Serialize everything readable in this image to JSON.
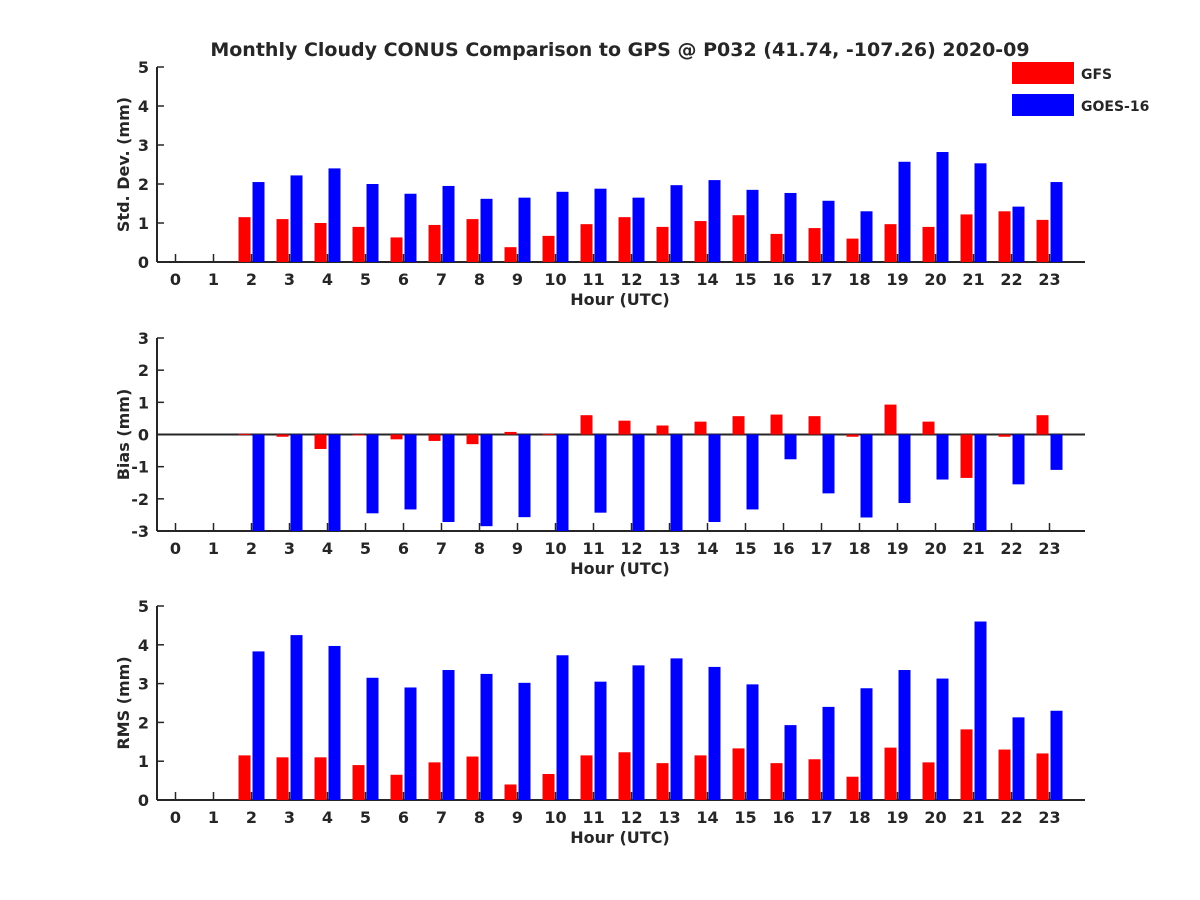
{
  "title": "Monthly Cloudy CONUS Comparison to GPS @ P032 (41.74, -107.26) 2020-09",
  "colors": {
    "gfs": "#ff0000",
    "goes": "#0000ff",
    "axis": "#262626",
    "background": "#ffffff"
  },
  "legend": {
    "placement": "top-right",
    "items": [
      {
        "label": "GFS",
        "color": "#ff0000"
      },
      {
        "label": "GOES-16",
        "color": "#0000ff"
      }
    ]
  },
  "chart_data": [
    {
      "type": "bar",
      "ylabel": "Std. Dev. (mm)",
      "xlabel": "Hour (UTC)",
      "categories": [
        "0",
        "1",
        "2",
        "3",
        "4",
        "5",
        "6",
        "7",
        "8",
        "9",
        "10",
        "11",
        "12",
        "13",
        "14",
        "15",
        "16",
        "17",
        "18",
        "19",
        "20",
        "21",
        "22",
        "23"
      ],
      "ylim": [
        0,
        5
      ],
      "yticks": [
        "0",
        "1",
        "2",
        "3",
        "4",
        "5"
      ],
      "grid": false,
      "series": [
        {
          "name": "GFS",
          "values": [
            null,
            null,
            1.15,
            1.1,
            1.0,
            0.9,
            0.63,
            0.95,
            1.1,
            0.38,
            0.67,
            0.97,
            1.15,
            0.9,
            1.05,
            1.2,
            0.72,
            0.87,
            0.6,
            0.97,
            0.9,
            1.22,
            1.3,
            1.08
          ]
        },
        {
          "name": "GOES-16",
          "values": [
            null,
            null,
            2.05,
            2.22,
            2.4,
            2.0,
            1.75,
            1.95,
            1.62,
            1.65,
            1.8,
            1.88,
            1.65,
            1.97,
            2.1,
            1.85,
            1.77,
            1.57,
            1.3,
            2.57,
            2.82,
            2.53,
            1.42,
            2.05
          ]
        }
      ]
    },
    {
      "type": "bar",
      "ylabel": "Bias (mm)",
      "xlabel": "Hour (UTC)",
      "categories": [
        "0",
        "1",
        "2",
        "3",
        "4",
        "5",
        "6",
        "7",
        "8",
        "9",
        "10",
        "11",
        "12",
        "13",
        "14",
        "15",
        "16",
        "17",
        "18",
        "19",
        "20",
        "21",
        "22",
        "23"
      ],
      "ylim": [
        -3,
        3
      ],
      "yticks": [
        "-3",
        "-2",
        "-1",
        "0",
        "1",
        "2",
        "3"
      ],
      "grid": false,
      "series": [
        {
          "name": "GFS",
          "values": [
            null,
            null,
            0.02,
            -0.07,
            -0.45,
            0.0,
            -0.15,
            -0.2,
            -0.3,
            0.08,
            0.02,
            0.6,
            0.43,
            0.28,
            0.4,
            0.57,
            0.62,
            0.57,
            -0.07,
            0.93,
            0.4,
            -1.35,
            -0.07,
            0.6
          ]
        },
        {
          "name": "GOES-16",
          "values": [
            null,
            null,
            -3.1,
            -3.1,
            -3.1,
            -2.45,
            -2.33,
            -2.72,
            -2.85,
            -2.57,
            -3.1,
            -2.43,
            -3.1,
            -3.1,
            -2.72,
            -2.33,
            -0.77,
            -1.83,
            -2.58,
            -2.13,
            -1.4,
            -3.1,
            -1.55,
            -1.1
          ]
        }
      ]
    },
    {
      "type": "bar",
      "ylabel": "RMS (mm)",
      "xlabel": "Hour (UTC)",
      "categories": [
        "0",
        "1",
        "2",
        "3",
        "4",
        "5",
        "6",
        "7",
        "8",
        "9",
        "10",
        "11",
        "12",
        "13",
        "14",
        "15",
        "16",
        "17",
        "18",
        "19",
        "20",
        "21",
        "22",
        "23"
      ],
      "ylim": [
        0,
        5
      ],
      "yticks": [
        "0",
        "1",
        "2",
        "3",
        "4",
        "5"
      ],
      "grid": false,
      "series": [
        {
          "name": "GFS",
          "values": [
            null,
            null,
            1.15,
            1.1,
            1.1,
            0.9,
            0.65,
            0.97,
            1.12,
            0.4,
            0.67,
            1.15,
            1.23,
            0.95,
            1.15,
            1.33,
            0.95,
            1.05,
            0.6,
            1.35,
            0.97,
            1.82,
            1.3,
            1.2
          ]
        },
        {
          "name": "GOES-16",
          "values": [
            null,
            null,
            3.83,
            4.25,
            3.97,
            3.15,
            2.9,
            3.35,
            3.25,
            3.02,
            3.73,
            3.05,
            3.47,
            3.65,
            3.43,
            2.98,
            1.93,
            2.4,
            2.88,
            3.35,
            3.13,
            4.6,
            2.13,
            2.3
          ]
        }
      ]
    }
  ]
}
